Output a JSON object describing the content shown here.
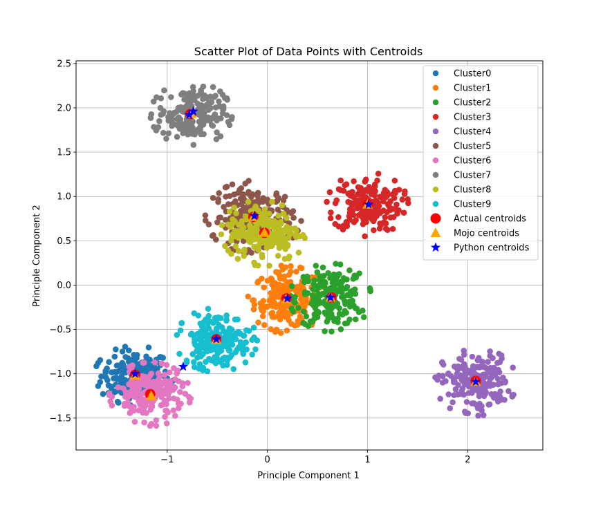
{
  "chart_data": {
    "type": "scatter",
    "title": "Scatter Plot of Data Points with Centroids",
    "xlabel": "Principle Component 1",
    "ylabel": "Principle Component 2",
    "xlim": [
      -1.91,
      2.75
    ],
    "ylim": [
      -1.86,
      2.53
    ],
    "xticks": [
      -1,
      0,
      1,
      2
    ],
    "yticks": [
      -1.5,
      -1.0,
      -0.5,
      0.0,
      0.5,
      1.0,
      1.5,
      2.0,
      2.5
    ],
    "xtick_labels": [
      "−1",
      "0",
      "1",
      "2"
    ],
    "ytick_labels": [
      "−1.5",
      "−1.0",
      "−0.5",
      "0.0",
      "0.5",
      "1.0",
      "1.5",
      "2.0",
      "2.5"
    ],
    "grid": true,
    "legend_position": "upper right",
    "clusters": [
      {
        "name": "Cluster0",
        "color": "#1f77b4",
        "center": [
          -1.32,
          -1.02
        ],
        "spread": [
          0.17,
          0.14
        ],
        "n": 200
      },
      {
        "name": "Cluster1",
        "color": "#ff7f0e",
        "center": [
          0.19,
          -0.16
        ],
        "spread": [
          0.16,
          0.16
        ],
        "n": 200
      },
      {
        "name": "Cluster2",
        "color": "#2ca02c",
        "center": [
          0.63,
          -0.14
        ],
        "spread": [
          0.17,
          0.16
        ],
        "n": 200
      },
      {
        "name": "Cluster3",
        "color": "#d62728",
        "center": [
          1.0,
          0.91
        ],
        "spread": [
          0.17,
          0.15
        ],
        "n": 200
      },
      {
        "name": "Cluster4",
        "color": "#9467bd",
        "center": [
          2.08,
          -1.09
        ],
        "spread": [
          0.17,
          0.16
        ],
        "n": 200
      },
      {
        "name": "Cluster5",
        "color": "#8c564b",
        "center": [
          -0.14,
          0.77
        ],
        "spread": [
          0.2,
          0.17
        ],
        "n": 200
      },
      {
        "name": "Cluster6",
        "color": "#e377c2",
        "center": [
          -1.17,
          -1.23
        ],
        "spread": [
          0.17,
          0.15
        ],
        "n": 200
      },
      {
        "name": "Cluster7",
        "color": "#7f7f7f",
        "center": [
          -0.76,
          1.93
        ],
        "spread": [
          0.17,
          0.15
        ],
        "n": 200
      },
      {
        "name": "Cluster8",
        "color": "#bcbd22",
        "center": [
          -0.03,
          0.6
        ],
        "spread": [
          0.18,
          0.16
        ],
        "n": 200
      },
      {
        "name": "Cluster9",
        "color": "#17becf",
        "center": [
          -0.51,
          -0.62
        ],
        "spread": [
          0.17,
          0.15
        ],
        "n": 200
      }
    ],
    "actual_centroids": {
      "name": "Actual centroids",
      "color": "#ff0000",
      "points": [
        [
          -1.32,
          -1.01
        ],
        [
          0.19,
          -0.15
        ],
        [
          0.64,
          -0.14
        ],
        [
          1.0,
          0.91
        ],
        [
          2.08,
          -1.08
        ],
        [
          -0.14,
          0.77
        ],
        [
          -1.17,
          -1.23
        ],
        [
          -0.77,
          1.93
        ],
        [
          -0.03,
          0.59
        ],
        [
          -0.51,
          -0.61
        ]
      ]
    },
    "mojo_centroids": {
      "name": "Mojo centroids",
      "color": "#ffa500",
      "points": [
        [
          -1.32,
          -1.02
        ],
        [
          0.19,
          -0.16
        ],
        [
          0.63,
          -0.14
        ],
        [
          1.0,
          0.91
        ],
        [
          2.08,
          -1.09
        ],
        [
          -0.14,
          0.77
        ],
        [
          -1.16,
          -1.25
        ],
        [
          -0.76,
          1.93
        ],
        [
          -0.03,
          0.59
        ],
        [
          -0.51,
          -0.62
        ]
      ]
    },
    "python_centroids": {
      "name": "Python centroids",
      "color": "#0000ff",
      "points": [
        [
          -1.32,
          -1.0
        ],
        [
          0.2,
          -0.15
        ],
        [
          0.63,
          -0.14
        ],
        [
          1.01,
          0.91
        ],
        [
          2.08,
          -1.09
        ],
        [
          -0.13,
          0.78
        ],
        [
          -0.84,
          -0.92
        ],
        [
          -0.74,
          1.96
        ],
        [
          -0.78,
          1.92
        ],
        [
          -0.51,
          -0.61
        ]
      ]
    }
  }
}
